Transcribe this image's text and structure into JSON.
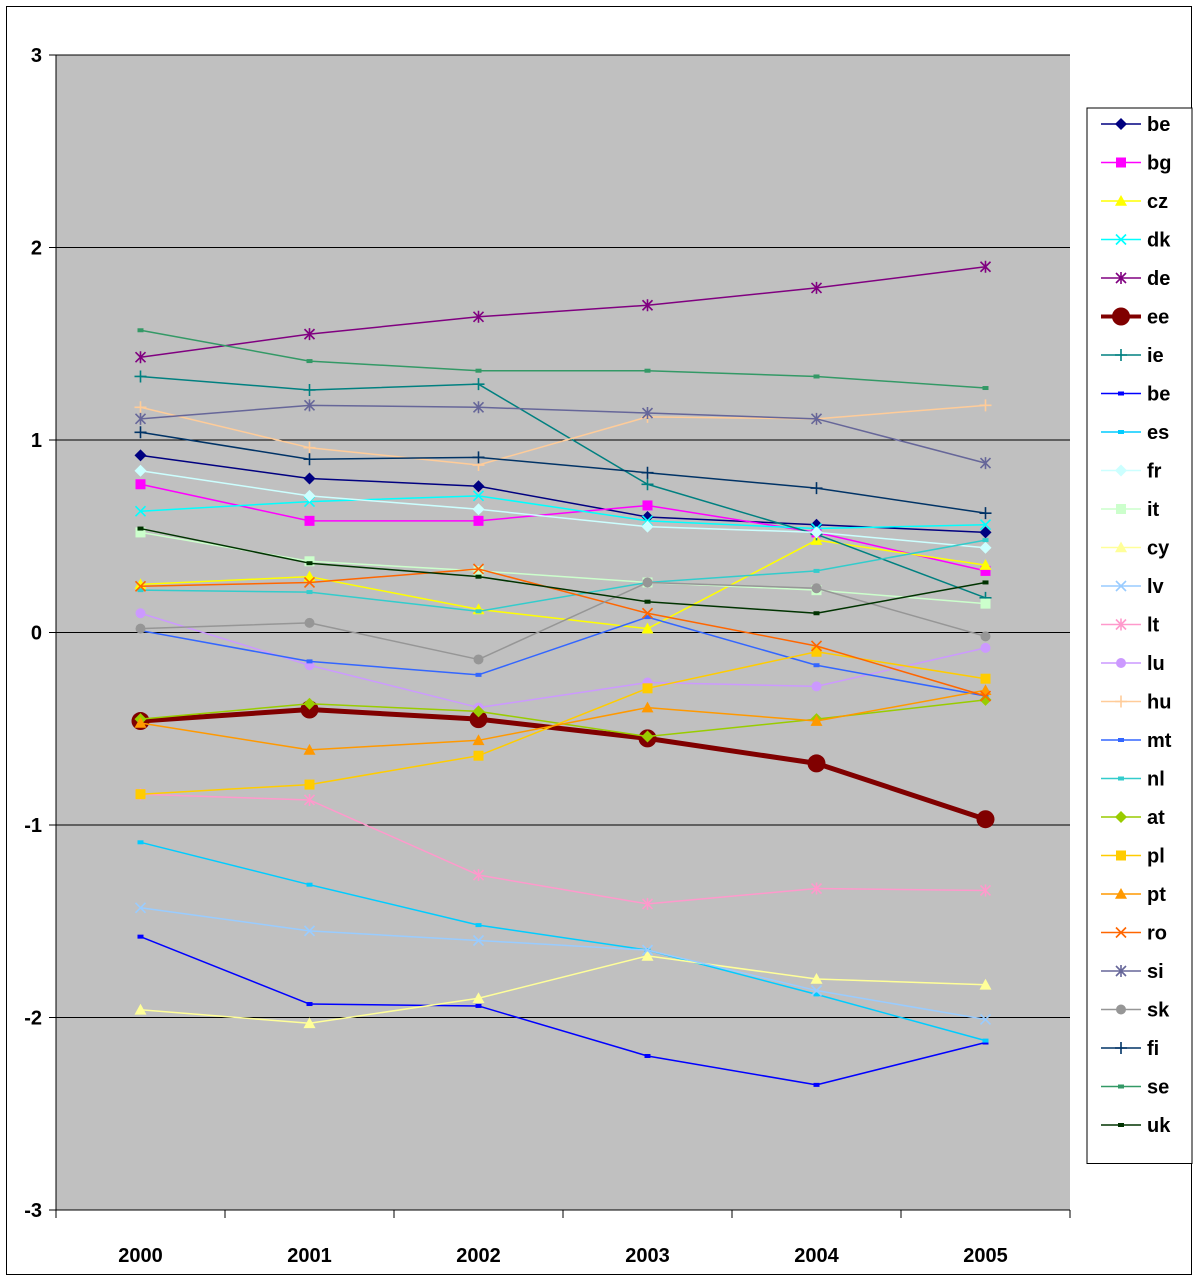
{
  "chart_data": {
    "type": "line",
    "title": "",
    "xlabel": "",
    "ylabel": "",
    "x": [
      "2000",
      "2001",
      "2002",
      "2003",
      "2004",
      "2005"
    ],
    "ylim": [
      -3,
      3
    ],
    "yticks": [
      -3,
      -2,
      -1,
      0,
      1,
      2,
      3
    ],
    "grid": true,
    "plot_background": "#c0c0c0",
    "legend_position": "right",
    "series": [
      {
        "name": "be",
        "color": "#000080",
        "marker": "diamond",
        "values": [
          0.92,
          0.8,
          0.76,
          0.6,
          0.56,
          0.52
        ]
      },
      {
        "name": "bg",
        "color": "#ff00ff",
        "marker": "square",
        "values": [
          0.77,
          0.58,
          0.58,
          0.66,
          0.52,
          0.32
        ]
      },
      {
        "name": "cz",
        "color": "#ffff00",
        "marker": "triangle",
        "values": [
          0.25,
          0.29,
          0.12,
          0.02,
          0.48,
          0.35
        ]
      },
      {
        "name": "dk",
        "color": "#00ffff",
        "marker": "x",
        "values": [
          0.63,
          0.68,
          0.71,
          0.58,
          0.54,
          0.56
        ]
      },
      {
        "name": "de",
        "color": "#800080",
        "marker": "star",
        "values": [
          1.43,
          1.55,
          1.64,
          1.7,
          1.79,
          1.9
        ]
      },
      {
        "name": "ee",
        "color": "#800000",
        "marker": "circle",
        "bold": true,
        "values": [
          -0.46,
          -0.4,
          -0.45,
          -0.55,
          -0.68,
          -0.97
        ]
      },
      {
        "name": "ie",
        "color": "#008080",
        "marker": "plus",
        "values": [
          1.33,
          1.26,
          1.29,
          0.77,
          0.51,
          0.18
        ]
      },
      {
        "name": "be",
        "color": "#0000ff",
        "marker": "dash",
        "values": [
          -1.58,
          -1.93,
          -1.94,
          -2.2,
          -2.35,
          -2.13
        ]
      },
      {
        "name": "es",
        "color": "#00ccff",
        "marker": "dash",
        "values": [
          -1.09,
          -1.31,
          -1.52,
          -1.65,
          -1.88,
          -2.12
        ]
      },
      {
        "name": "fr",
        "color": "#ccffff",
        "marker": "diamond",
        "values": [
          0.84,
          0.71,
          0.64,
          0.55,
          0.52,
          0.44
        ]
      },
      {
        "name": "it",
        "color": "#ccffcc",
        "marker": "square",
        "values": [
          0.52,
          0.37,
          0.32,
          0.26,
          0.22,
          0.15
        ]
      },
      {
        "name": "cy",
        "color": "#ffff99",
        "marker": "triangle",
        "values": [
          -1.96,
          -2.03,
          -1.9,
          -1.68,
          -1.8,
          -1.83
        ]
      },
      {
        "name": "lv",
        "color": "#99ccff",
        "marker": "x",
        "values": [
          -1.43,
          -1.55,
          -1.6,
          -1.65,
          -1.86,
          -2.01
        ]
      },
      {
        "name": "lt",
        "color": "#ff99cc",
        "marker": "star",
        "values": [
          -0.84,
          -0.87,
          -1.26,
          -1.41,
          -1.33,
          -1.34
        ]
      },
      {
        "name": "lu",
        "color": "#cc99ff",
        "marker": "circle",
        "values": [
          0.1,
          -0.17,
          -0.39,
          -0.26,
          -0.28,
          -0.08
        ]
      },
      {
        "name": "hu",
        "color": "#ffcc99",
        "marker": "plus",
        "values": [
          1.17,
          0.96,
          0.87,
          1.12,
          1.11,
          1.18
        ]
      },
      {
        "name": "mt",
        "color": "#3366ff",
        "marker": "dash",
        "values": [
          0.01,
          -0.15,
          -0.22,
          0.08,
          -0.17,
          -0.33
        ]
      },
      {
        "name": "nl",
        "color": "#33cccc",
        "marker": "dash",
        "values": [
          0.22,
          0.21,
          0.11,
          0.26,
          0.32,
          0.48
        ]
      },
      {
        "name": "at",
        "color": "#99cc00",
        "marker": "diamond",
        "values": [
          -0.45,
          -0.37,
          -0.41,
          -0.54,
          -0.45,
          -0.35
        ]
      },
      {
        "name": "pl",
        "color": "#ffcc00",
        "marker": "square",
        "values": [
          -0.84,
          -0.79,
          -0.64,
          -0.29,
          -0.1,
          -0.24
        ]
      },
      {
        "name": "pt",
        "color": "#ff9900",
        "marker": "triangle",
        "values": [
          -0.47,
          -0.61,
          -0.56,
          -0.39,
          -0.46,
          -0.3
        ]
      },
      {
        "name": "ro",
        "color": "#ff6600",
        "marker": "x",
        "values": [
          0.24,
          0.26,
          0.33,
          0.1,
          -0.07,
          -0.33
        ]
      },
      {
        "name": "si",
        "color": "#666699",
        "marker": "star",
        "values": [
          1.11,
          1.18,
          1.17,
          1.14,
          1.11,
          0.88
        ]
      },
      {
        "name": "sk",
        "color": "#969696",
        "marker": "circle",
        "values": [
          0.02,
          0.05,
          -0.14,
          0.26,
          0.23,
          -0.02
        ]
      },
      {
        "name": "fi",
        "color": "#003366",
        "marker": "plus",
        "values": [
          1.04,
          0.9,
          0.91,
          0.83,
          0.75,
          0.62
        ]
      },
      {
        "name": "se",
        "color": "#339966",
        "marker": "dash",
        "values": [
          1.57,
          1.41,
          1.36,
          1.36,
          1.33,
          1.27
        ]
      },
      {
        "name": "uk",
        "color": "#003300",
        "marker": "dash",
        "values": [
          0.54,
          0.36,
          0.29,
          0.16,
          0.1,
          0.26
        ]
      }
    ]
  }
}
